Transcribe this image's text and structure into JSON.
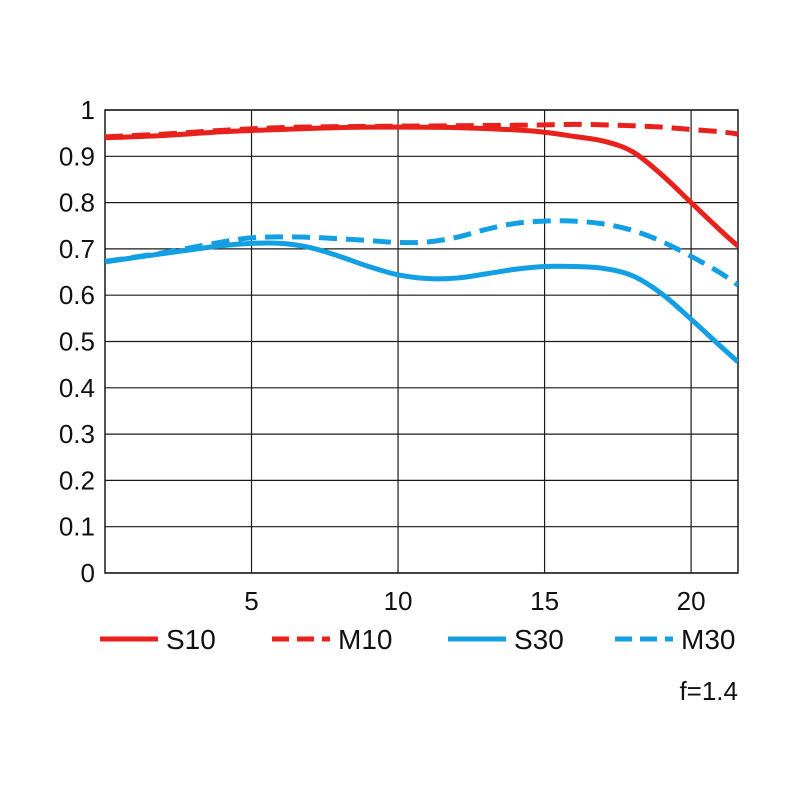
{
  "chart_data": {
    "type": "line",
    "title": "",
    "xlabel": "",
    "ylabel": "",
    "xlim": [
      0,
      21.6
    ],
    "ylim": [
      0,
      1
    ],
    "x_ticks": [
      "5",
      "10",
      "15",
      "20"
    ],
    "x_tick_values": [
      5,
      10,
      15,
      20
    ],
    "y_ticks": [
      "0",
      "0.1",
      "0.2",
      "0.3",
      "0.4",
      "0.5",
      "0.6",
      "0.7",
      "0.8",
      "0.9",
      "1"
    ],
    "y_tick_values": [
      0,
      0.1,
      0.2,
      0.3,
      0.4,
      0.5,
      0.6,
      0.7,
      0.8,
      0.9,
      1
    ],
    "grid": true,
    "legend_placement": "bottom",
    "series": [
      {
        "name": "S10",
        "color": "#e8211c",
        "dash": "solid",
        "x": [
          0,
          2,
          4,
          6,
          8,
          10,
          12,
          14,
          15,
          16,
          17,
          18,
          19,
          20,
          21,
          21.6
        ],
        "y": [
          0.94,
          0.945,
          0.953,
          0.958,
          0.962,
          0.963,
          0.962,
          0.957,
          0.952,
          0.943,
          0.933,
          0.91,
          0.86,
          0.8,
          0.74,
          0.706
        ]
      },
      {
        "name": "M10",
        "color": "#e8211c",
        "dash": "dashed",
        "x": [
          0,
          2,
          4,
          6,
          8,
          10,
          12,
          14,
          15,
          16,
          17,
          18,
          19,
          20,
          21,
          21.6
        ],
        "y": [
          0.942,
          0.948,
          0.956,
          0.962,
          0.964,
          0.965,
          0.966,
          0.967,
          0.968,
          0.969,
          0.968,
          0.966,
          0.963,
          0.958,
          0.953,
          0.948
        ]
      },
      {
        "name": "S30",
        "color": "#139fe4",
        "dash": "solid",
        "x": [
          0,
          2,
          4,
          5,
          6,
          7,
          8,
          9,
          10,
          11,
          12,
          13,
          14,
          15,
          16,
          17,
          18,
          19,
          20,
          21,
          21.6
        ],
        "y": [
          0.672,
          0.69,
          0.707,
          0.712,
          0.712,
          0.703,
          0.684,
          0.662,
          0.644,
          0.636,
          0.637,
          0.646,
          0.656,
          0.662,
          0.662,
          0.658,
          0.642,
          0.603,
          0.548,
          0.49,
          0.456
        ]
      },
      {
        "name": "M30",
        "color": "#139fe4",
        "dash": "dashed",
        "x": [
          0,
          2,
          4,
          5,
          6,
          7,
          8,
          9,
          10,
          11,
          12,
          13,
          14,
          15,
          16,
          17,
          18,
          19,
          20,
          21,
          21.6
        ],
        "y": [
          0.673,
          0.692,
          0.715,
          0.724,
          0.726,
          0.725,
          0.722,
          0.718,
          0.714,
          0.715,
          0.725,
          0.742,
          0.755,
          0.76,
          0.76,
          0.754,
          0.74,
          0.716,
          0.684,
          0.648,
          0.622
        ]
      }
    ],
    "annotation": "f=1.4"
  }
}
